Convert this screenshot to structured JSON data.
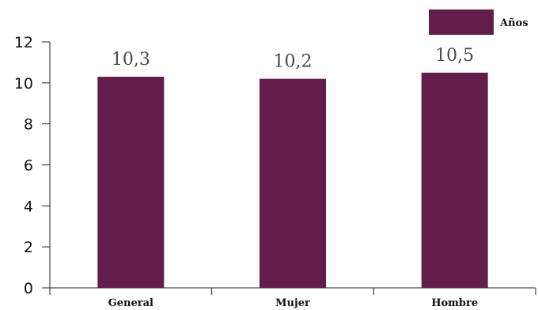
{
  "chart_data": {
    "type": "bar",
    "categories": [
      "General",
      "Mujer",
      "Hombre"
    ],
    "series": [
      {
        "name": "Años",
        "values": [
          10.3,
          10.2,
          10.5
        ]
      }
    ],
    "data_labels": [
      "10,3",
      "10,2",
      "10,5"
    ],
    "y_ticks": [
      "0",
      "2",
      "4",
      "6",
      "8",
      "10",
      "12"
    ],
    "ylim": [
      0,
      12
    ],
    "title": "",
    "xlabel": "",
    "ylabel": "",
    "legend": {
      "label": "Años",
      "position": "top-right"
    },
    "grid": false,
    "colors": {
      "bar": "#631d4b"
    }
  }
}
